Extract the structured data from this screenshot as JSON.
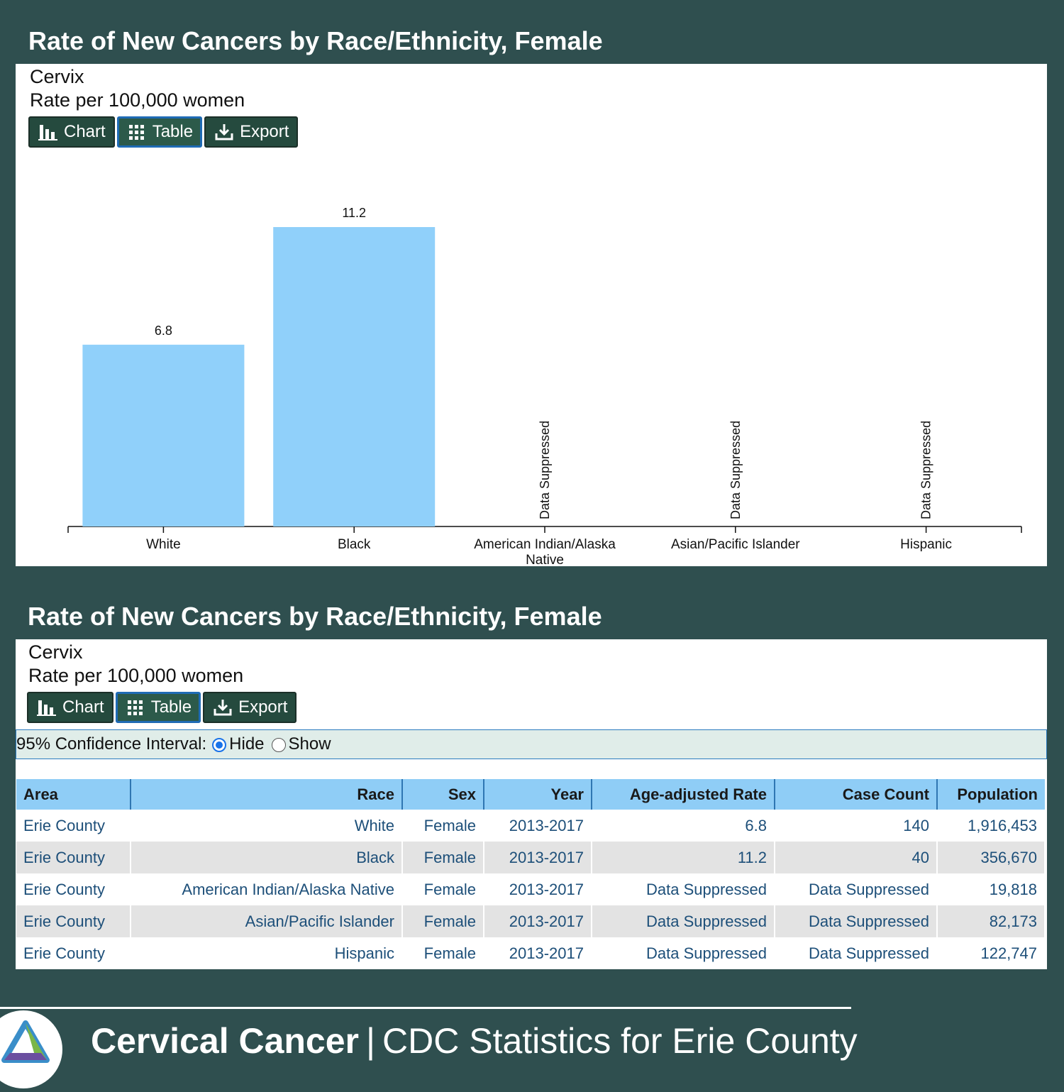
{
  "top_panel": {
    "title": "Rate of New Cancers by Race/Ethnicity, Female",
    "subtitle_site": "Cervix",
    "subtitle_rate": "Rate per 100,000 women",
    "buttons": {
      "chart": "Chart",
      "table": "Table",
      "export": "Export"
    }
  },
  "chart_data": {
    "type": "bar",
    "categories": [
      "White",
      "Black",
      "American Indian/Alaska Native",
      "Asian/Pacific Islander",
      "Hispanic"
    ],
    "category_lines": [
      [
        "White"
      ],
      [
        "Black"
      ],
      [
        "American Indian/Alaska",
        "Native"
      ],
      [
        "Asian/Pacific Islander"
      ],
      [
        "Hispanic"
      ]
    ],
    "values": [
      6.8,
      11.2,
      null,
      null,
      null
    ],
    "data_labels": [
      "6.8",
      "11.2",
      "Data Suppressed",
      "Data Suppressed",
      "Data Suppressed"
    ],
    "title": "Rate of New Cancers by Race/Ethnicity, Female",
    "subtitle": "Cervix",
    "ylabel": "Rate per 100,000 women",
    "xlabel": "",
    "ylim": [
      0,
      11.2
    ],
    "bar_color": "#90d0fa",
    "grid": false
  },
  "bottom_panel": {
    "title": "Rate of New Cancers by Race/Ethnicity, Female",
    "subtitle_site": "Cervix",
    "subtitle_rate": "Rate per 100,000 women",
    "buttons": {
      "chart": "Chart",
      "table": "Table",
      "export": "Export"
    },
    "ci": {
      "label": "95% Confidence Interval:",
      "hide": "Hide",
      "show": "Show",
      "selected": "Hide"
    },
    "table": {
      "headers": [
        "Area",
        "Race",
        "Sex",
        "Year",
        "Age-adjusted Rate",
        "Case Count",
        "Population"
      ],
      "rows": [
        [
          "Erie County",
          "White",
          "Female",
          "2013-2017",
          "6.8",
          "140",
          "1,916,453"
        ],
        [
          "Erie County",
          "Black",
          "Female",
          "2013-2017",
          "11.2",
          "40",
          "356,670"
        ],
        [
          "Erie County",
          "American Indian/Alaska Native",
          "Female",
          "2013-2017",
          "Data Suppressed",
          "Data Suppressed",
          "19,818"
        ],
        [
          "Erie County",
          "Asian/Pacific Islander",
          "Female",
          "2013-2017",
          "Data Suppressed",
          "Data Suppressed",
          "82,173"
        ],
        [
          "Erie County",
          "Hispanic",
          "Female",
          "2013-2017",
          "Data Suppressed",
          "Data Suppressed",
          "122,747"
        ]
      ]
    }
  },
  "footer": {
    "topic": "Cervical Cancer",
    "separator": "|",
    "source": "CDC Statistics for Erie County"
  },
  "colors": {
    "background": "#2f4f4f",
    "bar": "#90d0fa",
    "table_header": "#8fcdf6",
    "link_text": "#1d4f79"
  }
}
